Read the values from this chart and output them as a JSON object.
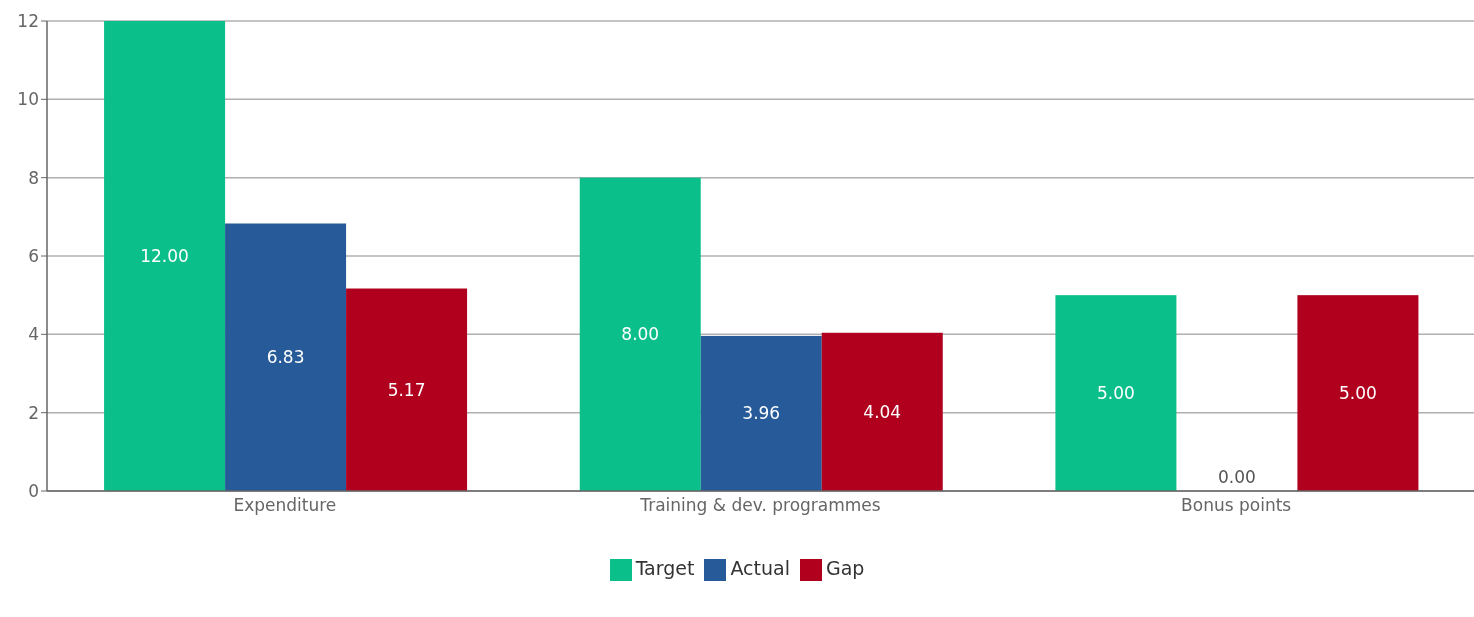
{
  "chart_data": {
    "type": "bar",
    "categories": [
      "Expenditure",
      "Training & dev. programmes",
      "Bonus points"
    ],
    "series": [
      {
        "name": "Target",
        "color": "#0abf8a",
        "values": [
          12,
          8,
          5
        ],
        "value_labels": [
          "12.00",
          "8.00",
          "5.00"
        ]
      },
      {
        "name": "Actual",
        "color": "#265a98",
        "values": [
          6.83,
          3.96,
          0
        ],
        "value_labels": [
          "6.83",
          "3.96",
          "0.00"
        ]
      },
      {
        "name": "Gap",
        "color": "#b0001e",
        "values": [
          5.17,
          4.04,
          5
        ],
        "value_labels": [
          "5.17",
          "4.04",
          "5.00"
        ]
      }
    ],
    "ylim": [
      0,
      12
    ],
    "yticks": [
      0,
      2,
      4,
      6,
      8,
      10,
      12
    ],
    "grid": "y",
    "legend": "bottom"
  }
}
